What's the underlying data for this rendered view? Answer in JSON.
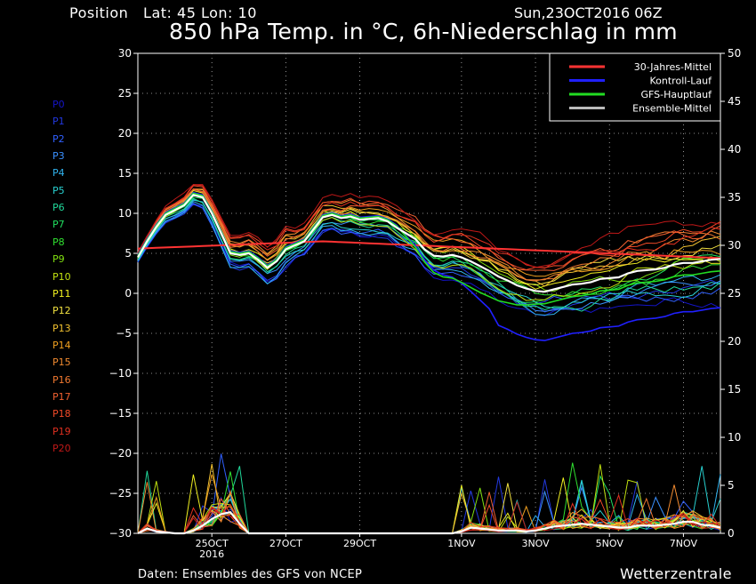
{
  "header": {
    "position_text": "Position   Lat: 45 Lon: 10",
    "date_text": "Sun,23OCT2016 06Z",
    "title": "850 hPa Temp. in °C, 6h-Niederschlag in mm"
  },
  "footer": {
    "source_text": "Daten: Ensembles des GFS von NCEP",
    "brand": "Wetterzentrale"
  },
  "members": [
    {
      "label": "P0",
      "color": "#1414c8"
    },
    {
      "label": "P1",
      "color": "#2238e0"
    },
    {
      "label": "P2",
      "color": "#3060ff"
    },
    {
      "label": "P3",
      "color": "#3a90ff"
    },
    {
      "label": "P4",
      "color": "#30b4f0"
    },
    {
      "label": "P5",
      "color": "#28d0d0"
    },
    {
      "label": "P6",
      "color": "#20d89a"
    },
    {
      "label": "P7",
      "color": "#20e060"
    },
    {
      "label": "P8",
      "color": "#30e030"
    },
    {
      "label": "P9",
      "color": "#80e010"
    },
    {
      "label": "P10",
      "color": "#c0e010"
    },
    {
      "label": "P11",
      "color": "#f0f020"
    },
    {
      "label": "P12",
      "color": "#f0e040"
    },
    {
      "label": "P13",
      "color": "#f0c030"
    },
    {
      "label": "P14",
      "color": "#f0a020"
    },
    {
      "label": "P15",
      "color": "#f08a30"
    },
    {
      "label": "P16",
      "color": "#f07830"
    },
    {
      "label": "P17",
      "color": "#f06030"
    },
    {
      "label": "P18",
      "color": "#f04a28"
    },
    {
      "label": "P19",
      "color": "#e03020"
    },
    {
      "label": "P20",
      "color": "#c01818"
    }
  ],
  "chart_data": {
    "type": "line",
    "title": "850 hPa Temp. in °C, 6h-Niederschlag in mm",
    "x_unit": "hours since 23OCT2016 06Z",
    "x_tick_labels": [
      {
        "x": 48,
        "label": "25OCT",
        "sublabel": "2016"
      },
      {
        "x": 96,
        "label": "27OCT"
      },
      {
        "x": 144,
        "label": "29OCT"
      },
      {
        "x": 210,
        "label": "1NOV"
      },
      {
        "x": 258,
        "label": "3NOV"
      },
      {
        "x": 306,
        "label": "5NOV"
      },
      {
        "x": 354,
        "label": "7NOV"
      }
    ],
    "xlim": [
      0,
      378
    ],
    "y_left": {
      "label": "°C",
      "lim": [
        -30,
        30
      ],
      "ticks": [
        -30,
        -25,
        -20,
        -15,
        -10,
        -5,
        0,
        5,
        10,
        15,
        20,
        25,
        30
      ]
    },
    "y_right": {
      "label": "mm",
      "lim": [
        0,
        50
      ],
      "ticks": [
        0,
        5,
        10,
        15,
        20,
        25,
        30,
        35,
        40,
        45,
        50
      ]
    },
    "grid": true,
    "legend": {
      "position": "top-right",
      "entries": [
        {
          "name": "30-Jahres-Mittel",
          "color": "#ff3333"
        },
        {
          "name": "Kontroll-Lauf",
          "color": "#2020ff"
        },
        {
          "name": "GFS-Hauptlauf",
          "color": "#22dd22"
        },
        {
          "name": "Ensemble-Mittel",
          "color": "#bbbbbb"
        }
      ]
    },
    "temperature": {
      "x": [
        0,
        6,
        12,
        18,
        24,
        30,
        36,
        42,
        48,
        54,
        60,
        66,
        72,
        78,
        84,
        90,
        96,
        102,
        108,
        114,
        120,
        126,
        132,
        138,
        144,
        150,
        156,
        162,
        168,
        174,
        180,
        186,
        192,
        198,
        204,
        210,
        216,
        222,
        228,
        234,
        240,
        246,
        252,
        258,
        264,
        270,
        276,
        282,
        288,
        294,
        300,
        306,
        312,
        318,
        324,
        330,
        336,
        342,
        348,
        354,
        360,
        366,
        372,
        378
      ],
      "ensemble_mean": [
        4.5,
        6.5,
        8.3,
        9.8,
        10.4,
        11.0,
        12.3,
        12.0,
        10.0,
        7.5,
        5.0,
        4.8,
        5.0,
        4.2,
        3.2,
        4.0,
        5.5,
        6.0,
        6.5,
        8.0,
        9.5,
        9.8,
        9.4,
        9.6,
        9.2,
        9.3,
        9.4,
        9.0,
        8.2,
        7.5,
        6.8,
        5.5,
        4.7,
        4.6,
        4.8,
        4.5,
        4.0,
        3.4,
        2.8,
        2.1,
        1.6,
        1.0,
        0.6,
        0.3,
        0.2,
        0.5,
        0.8,
        1.1,
        1.2,
        1.4,
        1.8,
        1.9,
        2.0,
        2.5,
        2.8,
        2.9,
        3.0,
        3.2,
        3.6,
        3.8,
        3.8,
        4.0,
        4.2,
        4.3
      ],
      "climate_mean": {
        "start": 5.6,
        "peak": 6.5,
        "end": 4.4
      },
      "control": {
        "end": -1.8
      },
      "main_run": {
        "end": 2.8
      },
      "member_spread": {
        "min": -5.9,
        "max": 13.6
      }
    },
    "precipitation": {
      "ensemble_mean_mm": [
        0.0,
        0.5,
        0.2,
        0.1,
        0.0,
        0.0,
        0.3,
        0.8,
        1.5,
        2.0,
        2.2,
        1.0,
        0.0,
        0.0,
        0.0,
        0.0,
        0.0,
        0.0,
        0.0,
        0.0,
        0.0,
        0.0,
        0.0,
        0.0,
        0.0,
        0.0,
        0.0,
        0.0,
        0.0,
        0.0,
        0.0,
        0.0,
        0.0,
        0.0,
        0.0,
        0.2,
        0.6,
        0.5,
        0.4,
        0.3,
        0.3,
        0.3,
        0.2,
        0.3,
        0.5,
        0.7,
        0.8,
        0.9,
        1.0,
        0.9,
        0.8,
        0.7,
        0.6,
        0.6,
        0.8,
        0.8,
        0.8,
        0.9,
        1.0,
        1.2,
        1.2,
        0.9,
        0.8,
        0.6
      ],
      "max_mm": 13.5
    }
  }
}
